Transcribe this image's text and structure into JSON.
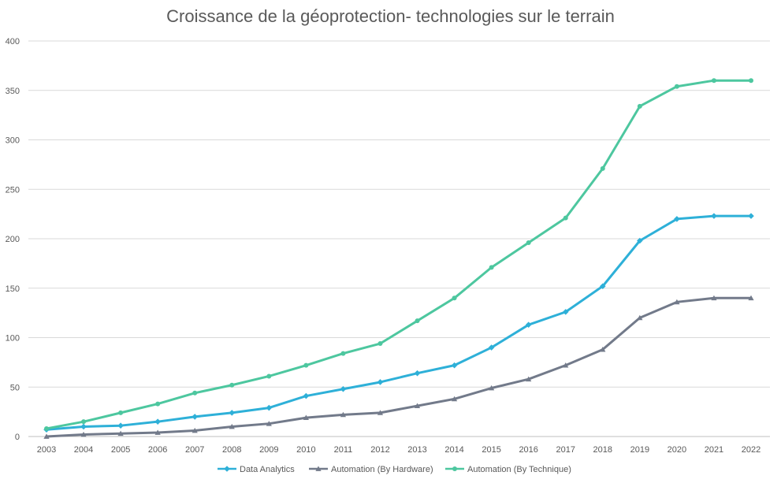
{
  "chart_data": {
    "type": "line",
    "title": "Croissance de la géoprotection- technologies sur le terrain",
    "xlabel": "",
    "ylabel": "",
    "ylim": [
      0,
      400
    ],
    "yticks": [
      0,
      50,
      100,
      150,
      200,
      250,
      300,
      350,
      400
    ],
    "grid": "horizontal",
    "legend_position": "bottom",
    "categories": [
      "2003",
      "2004",
      "2005",
      "2006",
      "2007",
      "2008",
      "2009",
      "2010",
      "2011",
      "2012",
      "2013",
      "2014",
      "2015",
      "2016",
      "2017",
      "2018",
      "2019",
      "2020",
      "2021",
      "2022"
    ],
    "series": [
      {
        "name": "Data Analytics",
        "color": "#2EB0D8",
        "marker": "diamond",
        "values": [
          7,
          10,
          11,
          15,
          20,
          24,
          29,
          41,
          48,
          55,
          64,
          72,
          90,
          113,
          126,
          152,
          198,
          220,
          223,
          223
        ]
      },
      {
        "name": "Automation (By Hardware)",
        "color": "#727A8A",
        "marker": "triangle",
        "values": [
          0,
          2,
          3,
          4,
          6,
          10,
          13,
          19,
          22,
          24,
          31,
          38,
          49,
          58,
          72,
          88,
          120,
          136,
          140,
          140
        ]
      },
      {
        "name": "Automation (By Technique)",
        "color": "#4DC79F",
        "marker": "circle",
        "values": [
          8,
          15,
          24,
          33,
          44,
          52,
          61,
          72,
          84,
          94,
          117,
          140,
          171,
          196,
          221,
          271,
          334,
          354,
          360,
          360
        ]
      }
    ]
  }
}
